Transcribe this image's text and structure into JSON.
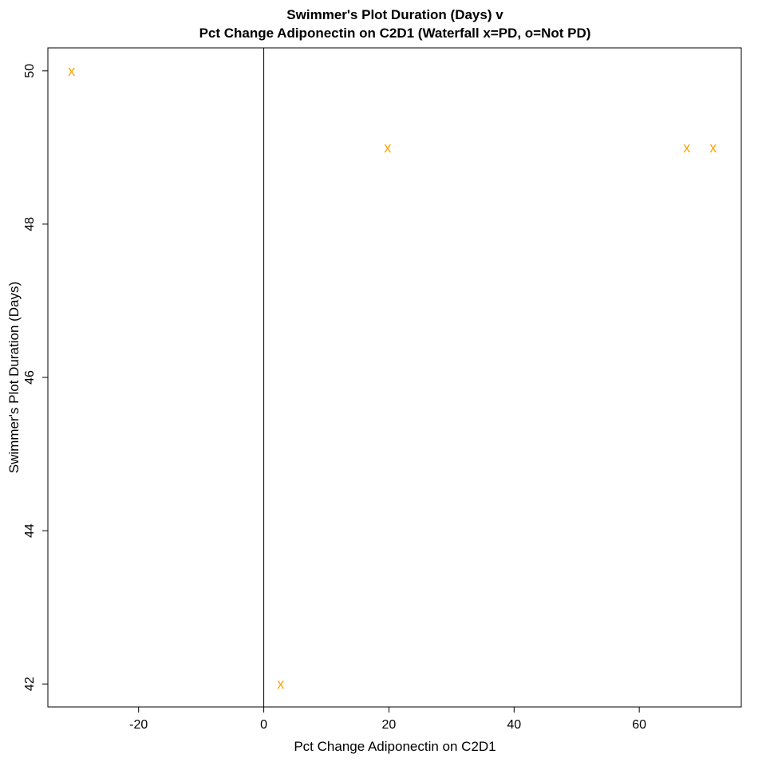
{
  "chart_data": {
    "type": "scatter",
    "title_lines": [
      "Swimmer's Plot Duration (Days) v",
      "Pct Change Adiponectin on C2D1 (Waterfall x=PD, o=Not PD)"
    ],
    "xlabel": "Pct Change Adiponectin on C2D1",
    "ylabel": "Swimmer's Plot Duration (Days)",
    "xlim": [
      -34.5,
      76.3
    ],
    "ylim": [
      41.7,
      50.3
    ],
    "x_ticks": [
      -20,
      0,
      20,
      40,
      60
    ],
    "y_ticks": [
      42,
      44,
      46,
      48,
      50
    ],
    "reference_line_x": 0,
    "grid": false,
    "marker": "x",
    "marker_color": "#FFA500",
    "points": [
      {
        "x": -30.7,
        "y": 50
      },
      {
        "x": 2.7,
        "y": 42
      },
      {
        "x": 19.8,
        "y": 49
      },
      {
        "x": 67.6,
        "y": 49
      },
      {
        "x": 71.8,
        "y": 49
      }
    ]
  }
}
